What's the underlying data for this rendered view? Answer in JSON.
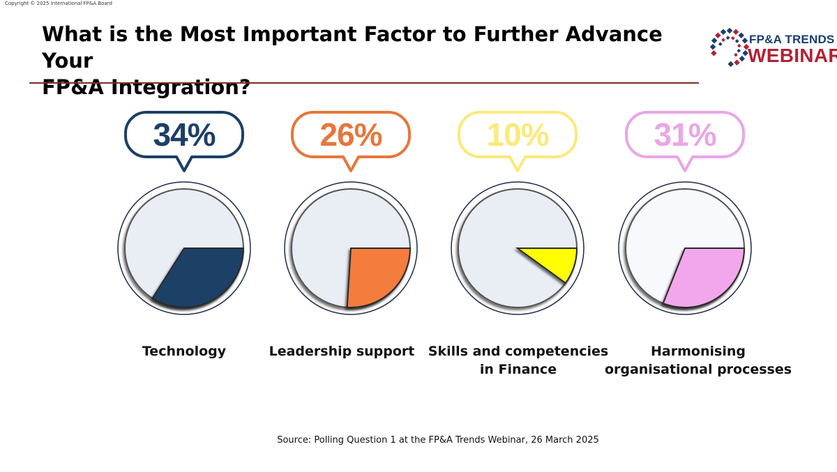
{
  "copyright": "Copyright © 2025 International FP&A Board",
  "title_line1": "What is the Most Important Factor to Further Advance Your",
  "title_line2": "FP&A Integration?",
  "logo": {
    "top_text": "FP&A TRENDS",
    "bottom_text": "WEBINAR",
    "colors": {
      "navy": "#1c3d6e",
      "red": "#b22234"
    }
  },
  "source": "Source: Polling Question 1 at the FP&A Trends Webinar, 26 March 2025",
  "chart_data": {
    "type": "pie",
    "title": "What is the Most Important Factor to Further Advance Your FP&A Integration?",
    "series": [
      {
        "label": "Technology",
        "value": 34,
        "value_label": "34%",
        "color": "#1c3f66",
        "bubble_color": "#1c3f66"
      },
      {
        "label": "Leadership support",
        "value": 26,
        "value_label": "26%",
        "color": "#f47c3c",
        "bubble_color": "#e8763a"
      },
      {
        "label": "Skills and competencies in Finance",
        "value": 10,
        "value_label": "10%",
        "color": "#ffff00",
        "bubble_color": "#fbe97a"
      },
      {
        "label": "Harmonising organisational processes",
        "value": 31,
        "value_label": "31%",
        "color": "#f2a7ec",
        "bubble_color": "#e9a6e6"
      }
    ],
    "labels_lines": [
      [
        "Technology"
      ],
      [
        "Leadership support"
      ],
      [
        "Skills and competencies",
        "in Finance"
      ],
      [
        "Harmonising",
        "organisational processes"
      ]
    ],
    "remainder_color": "#e9edf4",
    "last_remainder_color": "#f7f9fc",
    "outline_color": "#1c2a4a"
  }
}
